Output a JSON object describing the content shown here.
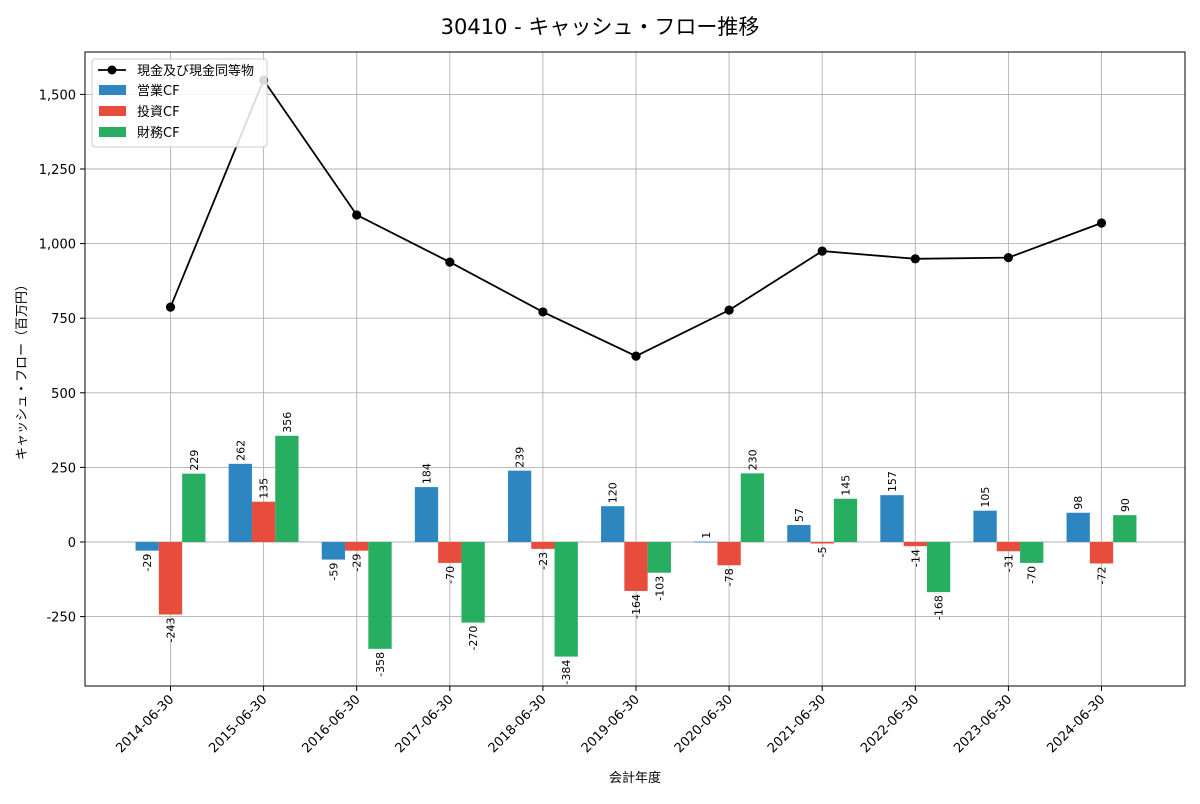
{
  "chart_data": {
    "type": "bar+line",
    "title": "30410 - キャッシュ・フロー推移",
    "xlabel": "会計年度",
    "ylabel": "キャッシュ・フロー（百万円）",
    "ylim": [
      -480,
      1650
    ],
    "yticks": [
      -250,
      0,
      250,
      500,
      750,
      1000,
      1250,
      1500
    ],
    "ytick_labels": [
      "-250",
      "0",
      "250",
      "500",
      "750",
      "1,000",
      "1,250",
      "1,500"
    ],
    "grid": true,
    "legend_position": "top-left",
    "categories": [
      "2014-06-30",
      "2015-06-30",
      "2016-06-30",
      "2017-06-30",
      "2018-06-30",
      "2019-06-30",
      "2020-06-30",
      "2021-06-30",
      "2022-06-30",
      "2023-06-30",
      "2024-06-30"
    ],
    "line_series": {
      "name": "現金及び現金同等物",
      "color": "#000000",
      "values": [
        787,
        1548,
        1096,
        938,
        771,
        623,
        777,
        975,
        949,
        953,
        1069
      ]
    },
    "series": [
      {
        "name": "営業CF",
        "color": "#2e86c1",
        "values": [
          -29,
          262,
          -59,
          184,
          239,
          120,
          1,
          57,
          157,
          105,
          98
        ]
      },
      {
        "name": "投資CF",
        "color": "#e74c3c",
        "values": [
          -243,
          135,
          -29,
          -70,
          -23,
          -164,
          -78,
          -5,
          -14,
          -31,
          -72
        ]
      },
      {
        "name": "財務CF",
        "color": "#27ae60",
        "values": [
          229,
          356,
          -358,
          -270,
          -384,
          -103,
          230,
          145,
          -168,
          -70,
          90
        ]
      }
    ]
  }
}
